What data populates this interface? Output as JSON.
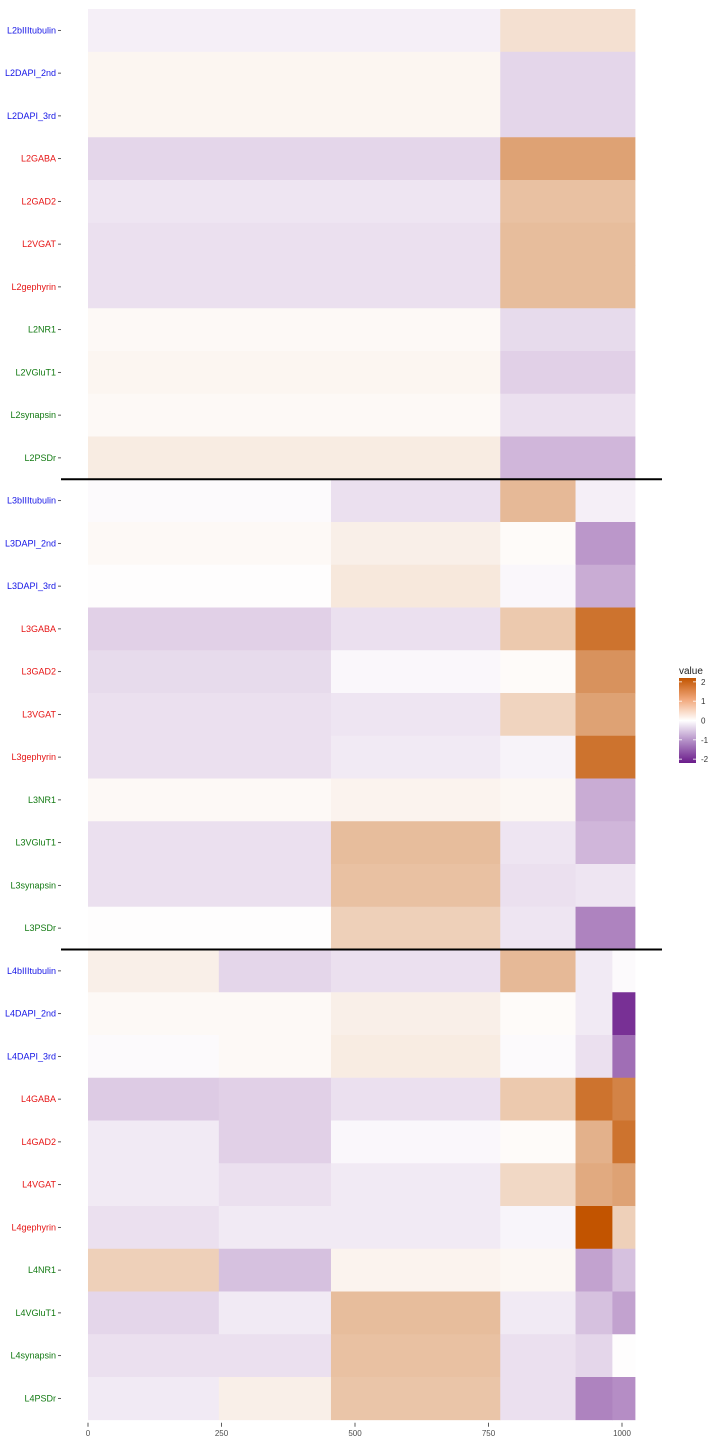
{
  "colors": {
    "tubulin_dapi": "#1414e6",
    "inhibitory": "#e61414",
    "excitatory": "#127a12",
    "low": "#6a1b8a",
    "mid": "#ffffff",
    "high": "#c25400"
  },
  "chart_data": {
    "type": "heatmap",
    "legend": {
      "title": "value",
      "ticks": [
        2,
        1,
        0,
        -1,
        -2
      ],
      "placement": "right"
    },
    "x_ticks": [
      0,
      250,
      500,
      750,
      1000
    ],
    "xlim": [
      0,
      1000
    ],
    "separators_after_row": [
      10,
      21
    ],
    "rows": [
      {
        "label": "L2bIIItubulin",
        "group": "tubulin_dapi",
        "cells": [
          {
            "x0": 0,
            "x1": 772,
            "v": -0.15
          },
          {
            "x0": 772,
            "x1": 1000,
            "v": 0.4
          }
        ]
      },
      {
        "label": "L2DAPI_2nd",
        "group": "tubulin_dapi",
        "cells": [
          {
            "x0": 0,
            "x1": 772,
            "v": 0.12
          },
          {
            "x0": 772,
            "x1": 1000,
            "v": -0.4
          }
        ]
      },
      {
        "label": "L2DAPI_3rd",
        "group": "tubulin_dapi",
        "cells": [
          {
            "x0": 0,
            "x1": 772,
            "v": 0.12
          },
          {
            "x0": 772,
            "x1": 1000,
            "v": -0.4
          }
        ]
      },
      {
        "label": "L2GABA",
        "group": "inhibitory",
        "cells": [
          {
            "x0": 0,
            "x1": 772,
            "v": -0.4
          },
          {
            "x0": 772,
            "x1": 1000,
            "v": 1.2
          }
        ]
      },
      {
        "label": "L2GAD2",
        "group": "inhibitory",
        "cells": [
          {
            "x0": 0,
            "x1": 772,
            "v": -0.25
          },
          {
            "x0": 772,
            "x1": 1000,
            "v": 0.8
          }
        ]
      },
      {
        "label": "L2VGAT",
        "group": "inhibitory",
        "cells": [
          {
            "x0": 0,
            "x1": 772,
            "v": -0.3
          },
          {
            "x0": 772,
            "x1": 1000,
            "v": 0.85
          }
        ]
      },
      {
        "label": "L2gephyrin",
        "group": "inhibitory",
        "cells": [
          {
            "x0": 0,
            "x1": 772,
            "v": -0.3
          },
          {
            "x0": 772,
            "x1": 1000,
            "v": 0.85
          }
        ]
      },
      {
        "label": "L2NR1",
        "group": "excitatory",
        "cells": [
          {
            "x0": 0,
            "x1": 772,
            "v": 0.08
          },
          {
            "x0": 772,
            "x1": 1000,
            "v": -0.35
          }
        ]
      },
      {
        "label": "L2VGluT1",
        "group": "excitatory",
        "cells": [
          {
            "x0": 0,
            "x1": 772,
            "v": 0.12
          },
          {
            "x0": 772,
            "x1": 1000,
            "v": -0.45
          }
        ]
      },
      {
        "label": "L2synapsin",
        "group": "excitatory",
        "cells": [
          {
            "x0": 0,
            "x1": 772,
            "v": 0.08
          },
          {
            "x0": 772,
            "x1": 1000,
            "v": -0.3
          }
        ]
      },
      {
        "label": "L2PSDr",
        "group": "excitatory",
        "cells": [
          {
            "x0": 0,
            "x1": 772,
            "v": 0.25
          },
          {
            "x0": 772,
            "x1": 1000,
            "v": -0.7
          }
        ]
      },
      {
        "label": "L3bIIItubulin",
        "group": "tubulin_dapi",
        "cells": [
          {
            "x0": 0,
            "x1": 455,
            "v": -0.05
          },
          {
            "x0": 455,
            "x1": 772,
            "v": -0.3
          },
          {
            "x0": 772,
            "x1": 913,
            "v": 0.9
          },
          {
            "x0": 913,
            "x1": 1000,
            "v": -0.15
          }
        ]
      },
      {
        "label": "L3DAPI_2nd",
        "group": "tubulin_dapi",
        "cells": [
          {
            "x0": 0,
            "x1": 455,
            "v": 0.08
          },
          {
            "x0": 455,
            "x1": 772,
            "v": 0.2
          },
          {
            "x0": 772,
            "x1": 913,
            "v": 0.05
          },
          {
            "x0": 913,
            "x1": 1000,
            "v": -1.0
          }
        ]
      },
      {
        "label": "L3DAPI_3rd",
        "group": "tubulin_dapi",
        "cells": [
          {
            "x0": 0,
            "x1": 455,
            "v": 0.02
          },
          {
            "x0": 455,
            "x1": 772,
            "v": 0.3
          },
          {
            "x0": 772,
            "x1": 913,
            "v": -0.08
          },
          {
            "x0": 913,
            "x1": 1000,
            "v": -0.8
          }
        ]
      },
      {
        "label": "L3GABA",
        "group": "inhibitory",
        "cells": [
          {
            "x0": 0,
            "x1": 455,
            "v": -0.45
          },
          {
            "x0": 455,
            "x1": 772,
            "v": -0.3
          },
          {
            "x0": 772,
            "x1": 913,
            "v": 0.7
          },
          {
            "x0": 913,
            "x1": 1000,
            "v": 1.8
          }
        ]
      },
      {
        "label": "L3GAD2",
        "group": "inhibitory",
        "cells": [
          {
            "x0": 0,
            "x1": 455,
            "v": -0.35
          },
          {
            "x0": 455,
            "x1": 772,
            "v": -0.08
          },
          {
            "x0": 772,
            "x1": 913,
            "v": 0.05
          },
          {
            "x0": 913,
            "x1": 1000,
            "v": 1.4
          }
        ]
      },
      {
        "label": "L3VGAT",
        "group": "inhibitory",
        "cells": [
          {
            "x0": 0,
            "x1": 455,
            "v": -0.3
          },
          {
            "x0": 455,
            "x1": 772,
            "v": -0.25
          },
          {
            "x0": 772,
            "x1": 913,
            "v": 0.55
          },
          {
            "x0": 913,
            "x1": 1000,
            "v": 1.2
          }
        ]
      },
      {
        "label": "L3gephyrin",
        "group": "inhibitory",
        "cells": [
          {
            "x0": 0,
            "x1": 455,
            "v": -0.3
          },
          {
            "x0": 455,
            "x1": 772,
            "v": -0.2
          },
          {
            "x0": 772,
            "x1": 913,
            "v": -0.12
          },
          {
            "x0": 913,
            "x1": 1000,
            "v": 1.8
          }
        ]
      },
      {
        "label": "L3NR1",
        "group": "excitatory",
        "cells": [
          {
            "x0": 0,
            "x1": 455,
            "v": 0.08
          },
          {
            "x0": 455,
            "x1": 772,
            "v": 0.15
          },
          {
            "x0": 772,
            "x1": 913,
            "v": 0.1
          },
          {
            "x0": 913,
            "x1": 1000,
            "v": -0.8
          }
        ]
      },
      {
        "label": "L3VGluT1",
        "group": "excitatory",
        "cells": [
          {
            "x0": 0,
            "x1": 455,
            "v": -0.3
          },
          {
            "x0": 455,
            "x1": 772,
            "v": 0.85
          },
          {
            "x0": 772,
            "x1": 913,
            "v": -0.25
          },
          {
            "x0": 913,
            "x1": 1000,
            "v": -0.7
          }
        ]
      },
      {
        "label": "L3synapsin",
        "group": "excitatory",
        "cells": [
          {
            "x0": 0,
            "x1": 455,
            "v": -0.3
          },
          {
            "x0": 455,
            "x1": 772,
            "v": 0.8
          },
          {
            "x0": 772,
            "x1": 913,
            "v": -0.3
          },
          {
            "x0": 913,
            "x1": 1000,
            "v": -0.25
          }
        ]
      },
      {
        "label": "L3PSDr",
        "group": "excitatory",
        "cells": [
          {
            "x0": 0,
            "x1": 455,
            "v": 0.02
          },
          {
            "x0": 455,
            "x1": 772,
            "v": 0.6
          },
          {
            "x0": 772,
            "x1": 913,
            "v": -0.25
          },
          {
            "x0": 913,
            "x1": 1000,
            "v": -1.2
          }
        ]
      },
      {
        "label": "L4bIIItubulin",
        "group": "tubulin_dapi",
        "cells": [
          {
            "x0": 0,
            "x1": 245,
            "v": 0.2
          },
          {
            "x0": 245,
            "x1": 455,
            "v": -0.4
          },
          {
            "x0": 455,
            "x1": 772,
            "v": -0.3
          },
          {
            "x0": 772,
            "x1": 913,
            "v": 0.9
          },
          {
            "x0": 913,
            "x1": 982,
            "v": -0.2
          },
          {
            "x0": 982,
            "x1": 1000,
            "v": -0.05
          }
        ]
      },
      {
        "label": "L4DAPI_2nd",
        "group": "tubulin_dapi",
        "cells": [
          {
            "x0": 0,
            "x1": 455,
            "v": 0.08
          },
          {
            "x0": 455,
            "x1": 772,
            "v": 0.2
          },
          {
            "x0": 772,
            "x1": 913,
            "v": 0.05
          },
          {
            "x0": 913,
            "x1": 982,
            "v": -0.2
          },
          {
            "x0": 982,
            "x1": 1000,
            "v": -2.0
          }
        ]
      },
      {
        "label": "L4DAPI_3rd",
        "group": "tubulin_dapi",
        "cells": [
          {
            "x0": 0,
            "x1": 245,
            "v": -0.05
          },
          {
            "x0": 245,
            "x1": 455,
            "v": 0.08
          },
          {
            "x0": 455,
            "x1": 772,
            "v": 0.25
          },
          {
            "x0": 772,
            "x1": 913,
            "v": -0.05
          },
          {
            "x0": 913,
            "x1": 982,
            "v": -0.3
          },
          {
            "x0": 982,
            "x1": 1000,
            "v": -1.4
          }
        ]
      },
      {
        "label": "L4GABA",
        "group": "inhibitory",
        "cells": [
          {
            "x0": 0,
            "x1": 245,
            "v": -0.5
          },
          {
            "x0": 245,
            "x1": 455,
            "v": -0.45
          },
          {
            "x0": 455,
            "x1": 772,
            "v": -0.3
          },
          {
            "x0": 772,
            "x1": 913,
            "v": 0.7
          },
          {
            "x0": 913,
            "x1": 982,
            "v": 1.8
          },
          {
            "x0": 982,
            "x1": 1000,
            "v": 1.6
          }
        ]
      },
      {
        "label": "L4GAD2",
        "group": "inhibitory",
        "cells": [
          {
            "x0": 0,
            "x1": 245,
            "v": -0.2
          },
          {
            "x0": 245,
            "x1": 455,
            "v": -0.45
          },
          {
            "x0": 455,
            "x1": 772,
            "v": -0.08
          },
          {
            "x0": 772,
            "x1": 913,
            "v": 0.05
          },
          {
            "x0": 913,
            "x1": 982,
            "v": 1.0
          },
          {
            "x0": 982,
            "x1": 1000,
            "v": 1.8
          }
        ]
      },
      {
        "label": "L4VGAT",
        "group": "inhibitory",
        "cells": [
          {
            "x0": 0,
            "x1": 245,
            "v": -0.2
          },
          {
            "x0": 245,
            "x1": 455,
            "v": -0.3
          },
          {
            "x0": 455,
            "x1": 772,
            "v": -0.2
          },
          {
            "x0": 772,
            "x1": 913,
            "v": 0.5
          },
          {
            "x0": 913,
            "x1": 982,
            "v": 1.1
          },
          {
            "x0": 982,
            "x1": 1000,
            "v": 1.2
          }
        ]
      },
      {
        "label": "L4gephyrin",
        "group": "inhibitory",
        "cells": [
          {
            "x0": 0,
            "x1": 245,
            "v": -0.3
          },
          {
            "x0": 245,
            "x1": 455,
            "v": -0.2
          },
          {
            "x0": 455,
            "x1": 772,
            "v": -0.2
          },
          {
            "x0": 772,
            "x1": 913,
            "v": -0.1
          },
          {
            "x0": 913,
            "x1": 982,
            "v": 2.2
          },
          {
            "x0": 982,
            "x1": 1000,
            "v": 0.6
          }
        ]
      },
      {
        "label": "L4NR1",
        "group": "excitatory",
        "cells": [
          {
            "x0": 0,
            "x1": 245,
            "v": 0.6
          },
          {
            "x0": 245,
            "x1": 455,
            "v": -0.6
          },
          {
            "x0": 455,
            "x1": 772,
            "v": 0.15
          },
          {
            "x0": 772,
            "x1": 913,
            "v": 0.1
          },
          {
            "x0": 913,
            "x1": 982,
            "v": -0.9
          },
          {
            "x0": 982,
            "x1": 1000,
            "v": -0.6
          }
        ]
      },
      {
        "label": "L4VGluT1",
        "group": "excitatory",
        "cells": [
          {
            "x0": 0,
            "x1": 245,
            "v": -0.4
          },
          {
            "x0": 245,
            "x1": 455,
            "v": -0.2
          },
          {
            "x0": 455,
            "x1": 772,
            "v": 0.85
          },
          {
            "x0": 772,
            "x1": 913,
            "v": -0.2
          },
          {
            "x0": 913,
            "x1": 982,
            "v": -0.6
          },
          {
            "x0": 982,
            "x1": 1000,
            "v": -0.9
          }
        ]
      },
      {
        "label": "L4synapsin",
        "group": "excitatory",
        "cells": [
          {
            "x0": 0,
            "x1": 455,
            "v": -0.3
          },
          {
            "x0": 455,
            "x1": 772,
            "v": 0.8
          },
          {
            "x0": 772,
            "x1": 913,
            "v": -0.3
          },
          {
            "x0": 913,
            "x1": 982,
            "v": -0.4
          },
          {
            "x0": 982,
            "x1": 1000,
            "v": 0.02
          }
        ]
      },
      {
        "label": "L4PSDr",
        "group": "excitatory",
        "cells": [
          {
            "x0": 0,
            "x1": 245,
            "v": -0.2
          },
          {
            "x0": 245,
            "x1": 455,
            "v": 0.2
          },
          {
            "x0": 455,
            "x1": 772,
            "v": 0.75
          },
          {
            "x0": 772,
            "x1": 913,
            "v": -0.3
          },
          {
            "x0": 913,
            "x1": 982,
            "v": -1.2
          },
          {
            "x0": 982,
            "x1": 1000,
            "v": -1.1
          }
        ]
      }
    ]
  }
}
